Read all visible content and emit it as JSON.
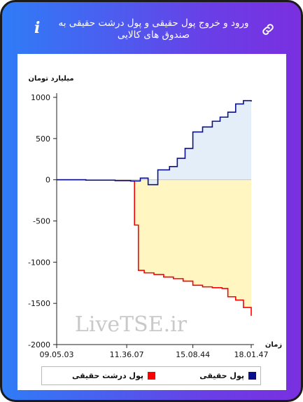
{
  "header": {
    "title": "ورود و خروج پول حقیقی و پول درشت حقیقی به صندوق های کالایی",
    "info_glyph": "i",
    "info_icon": "info-icon",
    "link_icon": "link-icon"
  },
  "watermark": "LiveTSE.ir",
  "colors": {
    "blue_line": "#0a0f8c",
    "blue_fill": "#e3eef8",
    "red_line": "#ff0000",
    "yellow_fill": "#fff6c2",
    "card_gradient_start": "#2f7cf6",
    "card_gradient_end": "#7a2fe0"
  },
  "chart_data": {
    "type": "area",
    "ylabel": "میلیارد تومان",
    "xlabel": "زمان",
    "ylim": [
      -2000,
      1000
    ],
    "yticks": [
      1000,
      500,
      0,
      -500,
      -1000,
      -1500,
      -2000
    ],
    "ytick_labels": [
      "1000",
      "500",
      "0",
      "-500",
      "-1000",
      "-1500",
      "-2000"
    ],
    "xlim": [
      0,
      100
    ],
    "xticks": [
      0,
      36,
      70,
      100
    ],
    "xtick_labels": [
      "09.05.03",
      "11.36.07",
      "15.08.44",
      "18.01.47"
    ],
    "grid": false,
    "legend": "bottom",
    "series": [
      {
        "name": "پول حقیقی",
        "color": "#0a0f8c",
        "fill": "#e3eef8",
        "x": [
          0,
          15,
          30,
          38,
          43,
          47,
          52,
          58,
          62,
          66,
          70,
          75,
          80,
          84,
          88,
          92,
          96,
          100
        ],
        "values": [
          0,
          -5,
          -10,
          -15,
          20,
          -60,
          120,
          160,
          260,
          380,
          580,
          640,
          710,
          760,
          820,
          920,
          960,
          950
        ]
      },
      {
        "name": "پول درشت حقیقی",
        "color": "#ff0000",
        "fill": "#fff6c2",
        "x": [
          0,
          15,
          30,
          38,
          40,
          42,
          45,
          50,
          55,
          60,
          65,
          70,
          75,
          80,
          85,
          88,
          92,
          96,
          100
        ],
        "values": [
          0,
          -5,
          -10,
          -15,
          -550,
          -1100,
          -1130,
          -1150,
          -1180,
          -1200,
          -1230,
          -1280,
          -1300,
          -1310,
          -1320,
          -1420,
          -1460,
          -1550,
          -1650
        ]
      }
    ]
  }
}
